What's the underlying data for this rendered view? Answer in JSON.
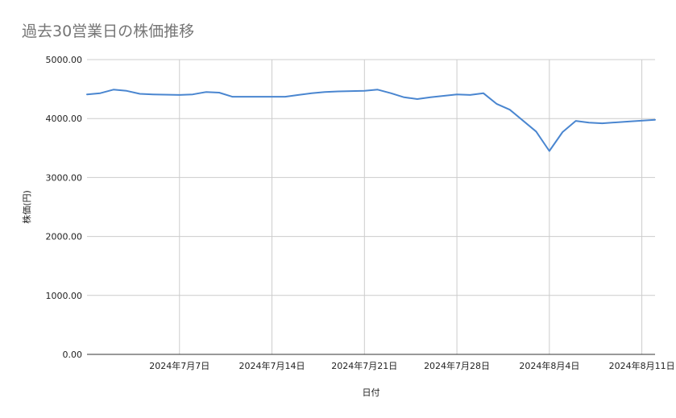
{
  "chart_data": {
    "type": "line",
    "title": "過去30営業日の株価推移",
    "xlabel": "日付",
    "ylabel": "株価(円)",
    "ylim": [
      0,
      5000
    ],
    "yticks": [
      0,
      1000,
      2000,
      3000,
      4000,
      5000
    ],
    "ytick_labels": [
      "0.00",
      "1000.00",
      "2000.00",
      "3000.00",
      "4000.00",
      "5000.00"
    ],
    "xlim": [
      "2024-06-30",
      "2024-08-12"
    ],
    "xticks": [
      "2024-07-07",
      "2024-07-14",
      "2024-07-21",
      "2024-07-28",
      "2024-08-04",
      "2024-08-11"
    ],
    "xtick_labels": [
      "2024年7月7日",
      "2024年7月14日",
      "2024年7月21日",
      "2024年7月28日",
      "2024年8月4日",
      "2024年8月11日"
    ],
    "grid": true,
    "line_color": "#4a86d0",
    "series": [
      {
        "x": [
          "2024-06-30",
          "2024-07-01",
          "2024-07-02",
          "2024-07-03",
          "2024-07-04",
          "2024-07-05",
          "2024-07-07",
          "2024-07-08",
          "2024-07-09",
          "2024-07-10",
          "2024-07-11",
          "2024-07-12",
          "2024-07-14",
          "2024-07-15",
          "2024-07-16",
          "2024-07-17",
          "2024-07-18",
          "2024-07-19",
          "2024-07-21",
          "2024-07-22",
          "2024-07-23",
          "2024-07-24",
          "2024-07-25",
          "2024-07-26",
          "2024-07-28",
          "2024-07-29",
          "2024-07-30",
          "2024-07-31",
          "2024-08-01",
          "2024-08-03",
          "2024-08-04",
          "2024-08-05",
          "2024-08-06",
          "2024-08-07",
          "2024-08-08",
          "2024-08-10",
          "2024-08-12"
        ],
        "values": [
          4410,
          4430,
          4490,
          4470,
          4420,
          4410,
          4400,
          4410,
          4450,
          4440,
          4370,
          4370,
          4370,
          4370,
          4400,
          4430,
          4450,
          4460,
          4470,
          4490,
          4430,
          4360,
          4330,
          4360,
          4410,
          4400,
          4430,
          4250,
          4150,
          3780,
          3450,
          3770,
          3960,
          3930,
          3920,
          3950,
          3980
        ]
      }
    ]
  }
}
